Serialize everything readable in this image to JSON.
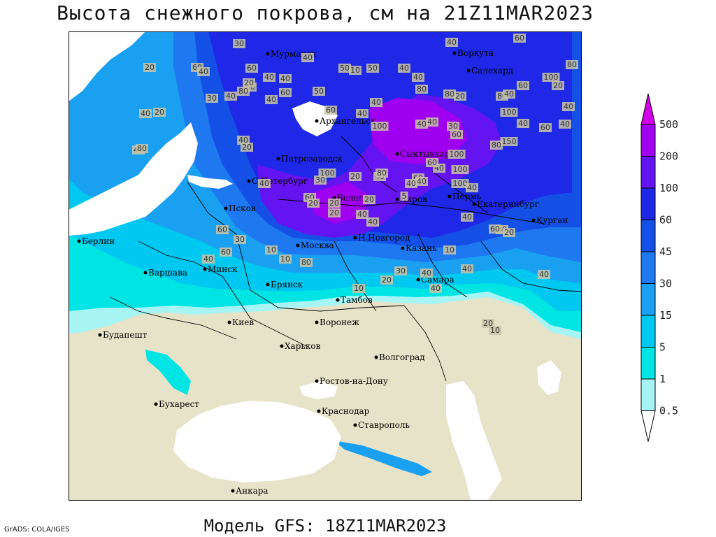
{
  "title": "Высота снежного покрова, см на 21Z11MAR2023",
  "subtitle": "Модель GFS: 18Z11MAR2023",
  "credit": "GrADS: COLA/IGES",
  "colors": {
    "land_no_snow": "#e6e3c8",
    "sea": "#ffffff",
    "border": "#000000",
    "snow_0_5": "#a7f4f4",
    "snow_1": "#00e4e4",
    "snow_5": "#00c8f0",
    "snow_15": "#1aa0f0",
    "snow_30": "#1e78f0",
    "snow_45": "#1450e6",
    "snow_60": "#1e28e6",
    "snow_100": "#6414f0",
    "snow_200": "#a000f0",
    "snow_500": "#d200e6"
  },
  "legend": {
    "labels": [
      "500",
      "200",
      "100",
      "60",
      "45",
      "30",
      "15",
      "5",
      "1",
      "0.5"
    ]
  },
  "cities": [
    {
      "name": "Мурманск"
    },
    {
      "name": "Воркута"
    },
    {
      "name": "Салехард"
    },
    {
      "name": "Архангельск"
    },
    {
      "name": "Сыктывкар"
    },
    {
      "name": "Петрозаводск"
    },
    {
      "name": "С.Петербург"
    },
    {
      "name": "Вологда"
    },
    {
      "name": "Киров"
    },
    {
      "name": "Пермь"
    },
    {
      "name": "Екатеринбург"
    },
    {
      "name": "Курган"
    },
    {
      "name": "Псков"
    },
    {
      "name": "Берлин"
    },
    {
      "name": "Москва"
    },
    {
      "name": "Н.Новгород"
    },
    {
      "name": "Казань"
    },
    {
      "name": "Варшава"
    },
    {
      "name": "Минск"
    },
    {
      "name": "Брянск"
    },
    {
      "name": "Тамбов"
    },
    {
      "name": "Самара"
    },
    {
      "name": "Киев"
    },
    {
      "name": "Воронеж"
    },
    {
      "name": "Будапешт"
    },
    {
      "name": "Харьков"
    },
    {
      "name": "Волгоград"
    },
    {
      "name": "Ростов-на-Дону"
    },
    {
      "name": "Бухарест"
    },
    {
      "name": "Краснодар"
    },
    {
      "name": "Ставрополь"
    },
    {
      "name": "Анкара"
    }
  ],
  "contour_labels": [
    "30",
    "40",
    "60",
    "20",
    "40",
    "60",
    "40",
    "50",
    "10",
    "50",
    "40",
    "40",
    "60",
    "80",
    "40",
    "60",
    "60",
    "80",
    "50",
    "20",
    "20",
    "40",
    "40",
    "30",
    "40",
    "60",
    "40",
    "80",
    "80",
    "20",
    "60",
    "100",
    "80",
    "40",
    "40",
    "20",
    "40",
    "40",
    "20",
    "80",
    "40",
    "40",
    "100",
    "40",
    "40",
    "100",
    "40",
    "30",
    "60",
    "40",
    "150",
    "80",
    "60",
    "100",
    "30",
    "20",
    "40",
    "80",
    "60",
    "40",
    "40",
    "100",
    "100",
    "40",
    "40",
    "40",
    "60",
    "20",
    "20",
    "40",
    "20",
    "40",
    "100",
    "40",
    "40",
    "60",
    "60",
    "60",
    "20",
    "10",
    "10",
    "40",
    "80",
    "30",
    "40",
    "30",
    "20",
    "5",
    "40",
    "60",
    "40",
    "20",
    "10",
    "40",
    "10",
    "20",
    "10",
    "30",
    "10",
    "5"
  ]
}
